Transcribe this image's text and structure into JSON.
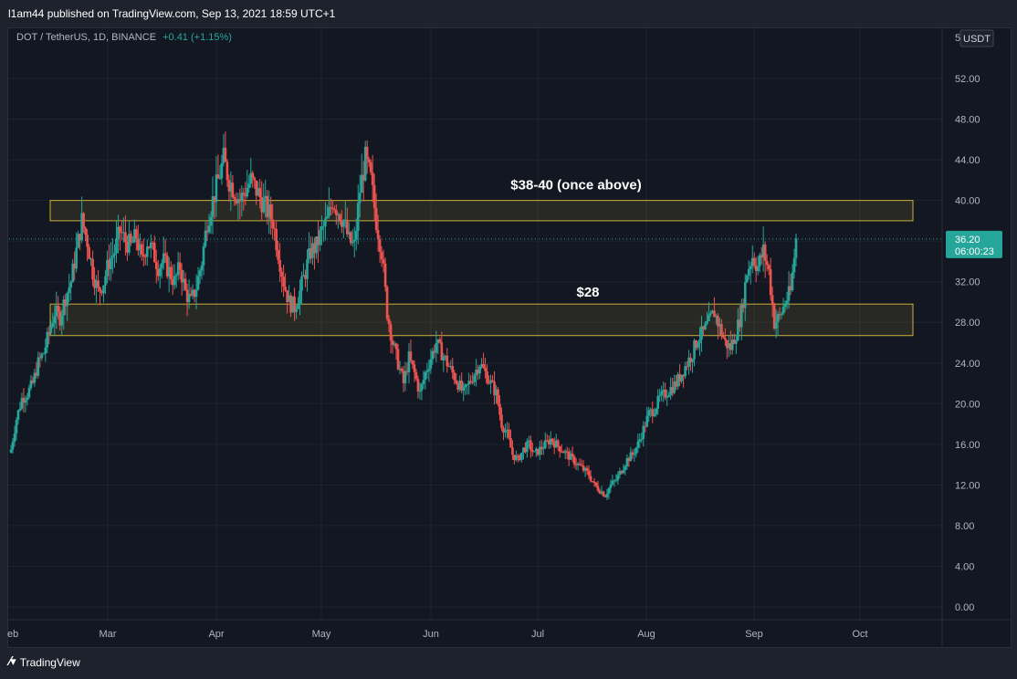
{
  "header": {
    "published_text": "l1am44 published on TradingView.com, Sep 13, 2021 18:59 UTC+1"
  },
  "symbol": {
    "title": "DOT / TetherUS, 1D, BINANCE",
    "change": "+0.41 (+1.15%)"
  },
  "price_axis": {
    "currency": "USDT",
    "top_label_partial": "5",
    "labels": [
      "52.00",
      "48.00",
      "44.00",
      "40.00",
      "36.00",
      "32.00",
      "28.00",
      "24.00",
      "20.00",
      "16.00",
      "12.00",
      "8.00",
      "4.00",
      "0.00"
    ],
    "last_price": "36.20",
    "countdown": "06:00:23"
  },
  "time_axis": {
    "labels": [
      "eb",
      "Mar",
      "Apr",
      "May",
      "Jun",
      "Jul",
      "Aug",
      "Sep",
      "Oct"
    ]
  },
  "zones": [
    {
      "label": "$38-40 (once above)",
      "from": 38.0,
      "to": 40.0
    },
    {
      "label": "$28",
      "from": 26.7,
      "to": 29.8
    }
  ],
  "footer": {
    "brand": "TradingView",
    "brand_icon": "tradingview-logo-icon"
  },
  "colors": {
    "up": "#26a69a",
    "down": "#ef5350",
    "zone_border": "#c9b037",
    "background": "#131722"
  },
  "chart_data": {
    "type": "candlestick",
    "title": "DOT / TetherUS, 1D, BINANCE",
    "ylim": [
      0,
      52
    ],
    "xlabel": "",
    "ylabel": "",
    "last_price": 36.2,
    "x_ticks": [
      "eb",
      "Mar",
      "Apr",
      "May",
      "Jun",
      "Jul",
      "Aug",
      "Sep",
      "Oct"
    ],
    "series": [
      {
        "name": "DOT/USDT",
        "close_path": [
          [
            0,
            15.5
          ],
          [
            3,
            18.5
          ],
          [
            6,
            20.5
          ],
          [
            9,
            21
          ],
          [
            12,
            22
          ],
          [
            15,
            24
          ],
          [
            18,
            25
          ],
          [
            21,
            27
          ],
          [
            24,
            29
          ],
          [
            27,
            28.5
          ],
          [
            30,
            30.5
          ],
          [
            33,
            32
          ],
          [
            36,
            35
          ],
          [
            39,
            38
          ],
          [
            42,
            36
          ],
          [
            45,
            33
          ],
          [
            48,
            31
          ],
          [
            51,
            32
          ],
          [
            54,
            34
          ],
          [
            57,
            35
          ],
          [
            60,
            37
          ],
          [
            63,
            36
          ],
          [
            66,
            35.5
          ],
          [
            69,
            36.5
          ],
          [
            72,
            34
          ],
          [
            75,
            36
          ],
          [
            78,
            35
          ],
          [
            81,
            33.5
          ],
          [
            84,
            34
          ],
          [
            87,
            33
          ],
          [
            90,
            32
          ],
          [
            93,
            33.5
          ],
          [
            96,
            31
          ],
          [
            99,
            30
          ],
          [
            102,
            31.5
          ],
          [
            105,
            34
          ],
          [
            108,
            38
          ],
          [
            111,
            40
          ],
          [
            114,
            42
          ],
          [
            117,
            44
          ],
          [
            120,
            42
          ],
          [
            123,
            41
          ],
          [
            126,
            40
          ],
          [
            129,
            41
          ],
          [
            132,
            42
          ],
          [
            135,
            41
          ],
          [
            138,
            40
          ],
          [
            141,
            39
          ],
          [
            144,
            38
          ],
          [
            147,
            35
          ],
          [
            150,
            32
          ],
          [
            153,
            30
          ],
          [
            156,
            29.5
          ],
          [
            159,
            31
          ],
          [
            162,
            33
          ],
          [
            165,
            35
          ],
          [
            168,
            35.5
          ],
          [
            171,
            37
          ],
          [
            174,
            38
          ],
          [
            177,
            40
          ],
          [
            180,
            39
          ],
          [
            183,
            38
          ],
          [
            186,
            36
          ],
          [
            189,
            35.5
          ],
          [
            192,
            41
          ],
          [
            195,
            44
          ],
          [
            198,
            42
          ],
          [
            201,
            38
          ],
          [
            204,
            35
          ],
          [
            207,
            29
          ],
          [
            210,
            26
          ],
          [
            213,
            24
          ],
          [
            216,
            22
          ],
          [
            219,
            24.5
          ],
          [
            222,
            23
          ],
          [
            225,
            21
          ],
          [
            228,
            23
          ],
          [
            231,
            24.5
          ],
          [
            234,
            26
          ],
          [
            237,
            25
          ],
          [
            240,
            24
          ],
          [
            243,
            23
          ],
          [
            246,
            22
          ],
          [
            249,
            21
          ],
          [
            252,
            22
          ],
          [
            255,
            23
          ],
          [
            258,
            24
          ],
          [
            261,
            23
          ],
          [
            264,
            22
          ],
          [
            267,
            21
          ],
          [
            270,
            18
          ],
          [
            273,
            17
          ],
          [
            276,
            15
          ],
          [
            279,
            14.5
          ],
          [
            282,
            15.5
          ],
          [
            285,
            16
          ],
          [
            288,
            15
          ],
          [
            291,
            15.5
          ],
          [
            294,
            16
          ],
          [
            297,
            16.5
          ],
          [
            300,
            16
          ],
          [
            303,
            15.5
          ],
          [
            306,
            15
          ],
          [
            309,
            14.5
          ],
          [
            312,
            14
          ],
          [
            315,
            13.5
          ],
          [
            318,
            13
          ],
          [
            321,
            12
          ],
          [
            324,
            11.5
          ],
          [
            327,
            11
          ],
          [
            330,
            12
          ],
          [
            333,
            12.5
          ],
          [
            336,
            13.5
          ],
          [
            339,
            14.5
          ],
          [
            342,
            15
          ],
          [
            345,
            16
          ],
          [
            348,
            17.5
          ],
          [
            351,
            19
          ],
          [
            354,
            19.5
          ],
          [
            357,
            20.5
          ],
          [
            360,
            21
          ],
          [
            363,
            21.5
          ],
          [
            366,
            22
          ],
          [
            369,
            23
          ],
          [
            372,
            24
          ],
          [
            375,
            25
          ],
          [
            378,
            26.5
          ],
          [
            381,
            27
          ],
          [
            384,
            28
          ],
          [
            387,
            29
          ],
          [
            390,
            27.5
          ],
          [
            393,
            26
          ],
          [
            396,
            25.5
          ],
          [
            399,
            27
          ],
          [
            402,
            29
          ],
          [
            405,
            33
          ],
          [
            408,
            34.5
          ],
          [
            411,
            33.5
          ],
          [
            414,
            35
          ],
          [
            417,
            33
          ],
          [
            420,
            28
          ],
          [
            423,
            28.5
          ],
          [
            426,
            30
          ],
          [
            429,
            31
          ],
          [
            432,
            36.2
          ]
        ]
      }
    ]
  }
}
